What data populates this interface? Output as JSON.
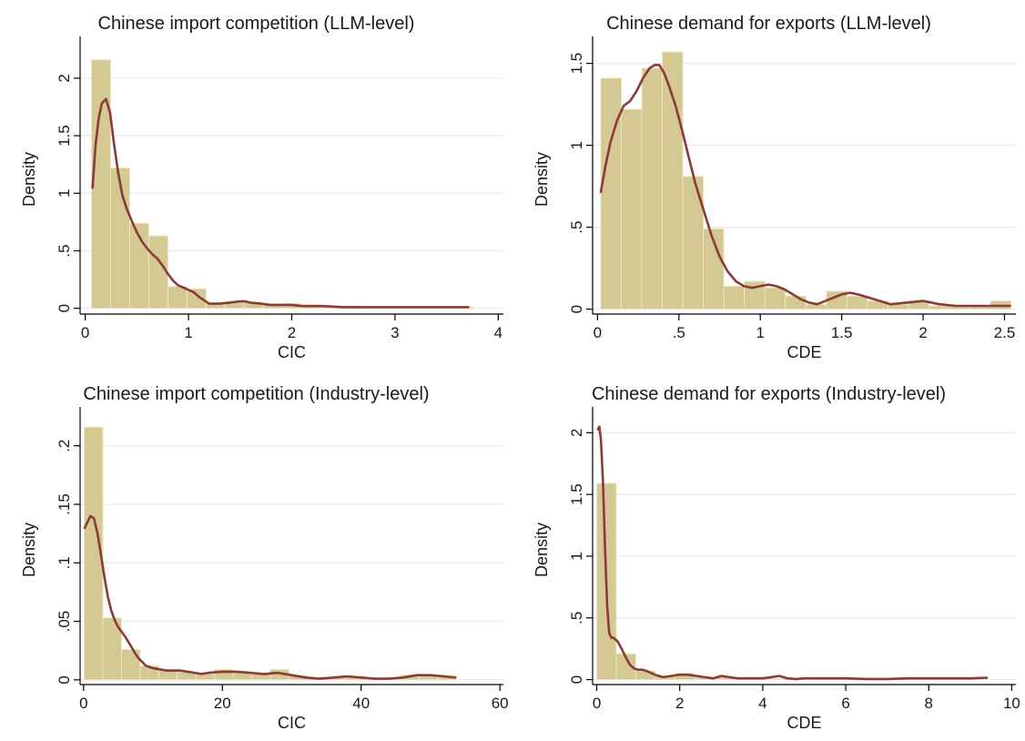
{
  "style": {
    "bar_fill": "#d4c993",
    "bar_stroke": "#ece6c8",
    "kde_color": "#8b3a3a",
    "grid_color": "#e6ecec",
    "axis_color": "#000000"
  },
  "chart_data": [
    {
      "type": "histogram",
      "title": "Chinese import competition (LLM-level)",
      "xlabel": "CIC",
      "ylabel": "Density",
      "xlim": [
        -0.05,
        4.05
      ],
      "ylim": [
        -0.05,
        2.3
      ],
      "xticks": [
        0,
        1,
        2,
        3,
        4
      ],
      "xtick_labels": [
        "0",
        "1",
        "2",
        "3",
        "4"
      ],
      "yticks": [
        0,
        0.5,
        1,
        1.5,
        2
      ],
      "ytick_labels": [
        "0",
        ".5",
        "1",
        "1.5",
        "2"
      ],
      "grid": true,
      "bins": [
        {
          "x0": 0.06,
          "x1": 0.245,
          "density": 2.16
        },
        {
          "x0": 0.245,
          "x1": 0.43,
          "density": 1.22
        },
        {
          "x0": 0.43,
          "x1": 0.615,
          "density": 0.74
        },
        {
          "x0": 0.615,
          "x1": 0.8,
          "density": 0.63
        },
        {
          "x0": 0.8,
          "x1": 0.985,
          "density": 0.19
        },
        {
          "x0": 0.985,
          "x1": 1.17,
          "density": 0.17
        },
        {
          "x0": 1.17,
          "x1": 1.355,
          "density": 0.04
        },
        {
          "x0": 1.355,
          "x1": 1.54,
          "density": 0.05
        },
        {
          "x0": 1.54,
          "x1": 1.725,
          "density": 0.05
        },
        {
          "x0": 1.725,
          "x1": 1.91,
          "density": 0.03
        },
        {
          "x0": 1.91,
          "x1": 2.095,
          "density": 0.04
        },
        {
          "x0": 2.095,
          "x1": 2.28,
          "density": 0.03
        },
        {
          "x0": 2.28,
          "x1": 2.465,
          "density": 0.02
        },
        {
          "x0": 2.465,
          "x1": 2.65,
          "density": 0.02
        },
        {
          "x0": 2.65,
          "x1": 2.835,
          "density": 0.01
        },
        {
          "x0": 2.835,
          "x1": 3.02,
          "density": 0.01
        },
        {
          "x0": 3.02,
          "x1": 3.205,
          "density": 0.01
        },
        {
          "x0": 3.205,
          "x1": 3.39,
          "density": 0.01
        },
        {
          "x0": 3.39,
          "x1": 3.575,
          "density": 0.01
        },
        {
          "x0": 3.575,
          "x1": 3.76,
          "density": 0.01
        }
      ],
      "kde": {
        "x": [
          0.07,
          0.1,
          0.13,
          0.16,
          0.2,
          0.24,
          0.28,
          0.32,
          0.36,
          0.4,
          0.45,
          0.5,
          0.55,
          0.6,
          0.65,
          0.7,
          0.75,
          0.8,
          0.85,
          0.9,
          0.95,
          1.0,
          1.05,
          1.1,
          1.15,
          1.2,
          1.25,
          1.3,
          1.4,
          1.5,
          1.55,
          1.6,
          1.7,
          1.8,
          1.9,
          2.0,
          2.1,
          2.3,
          2.5,
          2.7,
          2.9,
          3.1,
          3.3,
          3.5,
          3.72
        ],
        "y": [
          1.04,
          1.42,
          1.65,
          1.78,
          1.82,
          1.7,
          1.42,
          1.17,
          0.98,
          0.87,
          0.76,
          0.66,
          0.58,
          0.52,
          0.47,
          0.43,
          0.37,
          0.3,
          0.24,
          0.2,
          0.18,
          0.16,
          0.14,
          0.1,
          0.07,
          0.04,
          0.04,
          0.04,
          0.05,
          0.06,
          0.06,
          0.05,
          0.04,
          0.03,
          0.03,
          0.03,
          0.02,
          0.02,
          0.01,
          0.01,
          0.01,
          0.01,
          0.01,
          0.01,
          0.01
        ]
      }
    },
    {
      "type": "histogram",
      "title": "Chinese demand for exports (LLM-level)",
      "xlabel": "CDE",
      "ylabel": "Density",
      "xlim": [
        -0.03,
        2.57
      ],
      "ylim": [
        -0.03,
        1.62
      ],
      "xticks": [
        0,
        0.5,
        1,
        1.5,
        2,
        2.5
      ],
      "xtick_labels": [
        "0",
        ".5",
        "1",
        "1.5",
        "2",
        "2.5"
      ],
      "yticks": [
        0,
        0.5,
        1,
        1.5
      ],
      "ytick_labels": [
        "0",
        ".5",
        "1",
        "1.5"
      ],
      "grid": true,
      "bins": [
        {
          "x0": 0.02,
          "x1": 0.146,
          "density": 1.41
        },
        {
          "x0": 0.146,
          "x1": 0.272,
          "density": 1.22
        },
        {
          "x0": 0.272,
          "x1": 0.398,
          "density": 1.47
        },
        {
          "x0": 0.398,
          "x1": 0.524,
          "density": 1.57
        },
        {
          "x0": 0.524,
          "x1": 0.65,
          "density": 0.81
        },
        {
          "x0": 0.65,
          "x1": 0.776,
          "density": 0.49
        },
        {
          "x0": 0.776,
          "x1": 0.902,
          "density": 0.14
        },
        {
          "x0": 0.902,
          "x1": 1.028,
          "density": 0.17
        },
        {
          "x0": 1.028,
          "x1": 1.154,
          "density": 0.13
        },
        {
          "x0": 1.154,
          "x1": 1.28,
          "density": 0.08
        },
        {
          "x0": 1.28,
          "x1": 1.406,
          "density": 0.03
        },
        {
          "x0": 1.406,
          "x1": 1.532,
          "density": 0.11
        },
        {
          "x0": 1.532,
          "x1": 1.658,
          "density": 0.08
        },
        {
          "x0": 1.658,
          "x1": 1.784,
          "density": 0.05
        },
        {
          "x0": 1.784,
          "x1": 1.91,
          "density": 0.03
        },
        {
          "x0": 1.91,
          "x1": 2.036,
          "density": 0.05
        },
        {
          "x0": 2.036,
          "x1": 2.162,
          "density": 0.02
        },
        {
          "x0": 2.162,
          "x1": 2.288,
          "density": 0.02
        },
        {
          "x0": 2.288,
          "x1": 2.414,
          "density": 0.02
        },
        {
          "x0": 2.414,
          "x1": 2.54,
          "density": 0.05
        }
      ],
      "kde": {
        "x": [
          0.02,
          0.05,
          0.08,
          0.12,
          0.16,
          0.2,
          0.24,
          0.28,
          0.32,
          0.35,
          0.38,
          0.41,
          0.44,
          0.48,
          0.52,
          0.56,
          0.6,
          0.65,
          0.7,
          0.75,
          0.8,
          0.85,
          0.9,
          0.95,
          1.0,
          1.05,
          1.1,
          1.15,
          1.2,
          1.25,
          1.3,
          1.35,
          1.4,
          1.45,
          1.5,
          1.55,
          1.6,
          1.7,
          1.8,
          1.9,
          2.0,
          2.1,
          2.2,
          2.3,
          2.4,
          2.54
        ],
        "y": [
          0.71,
          0.88,
          1.02,
          1.15,
          1.24,
          1.27,
          1.33,
          1.41,
          1.47,
          1.49,
          1.49,
          1.44,
          1.36,
          1.24,
          1.09,
          0.93,
          0.77,
          0.61,
          0.45,
          0.32,
          0.23,
          0.17,
          0.14,
          0.13,
          0.14,
          0.15,
          0.14,
          0.12,
          0.09,
          0.06,
          0.04,
          0.03,
          0.05,
          0.07,
          0.09,
          0.1,
          0.09,
          0.06,
          0.03,
          0.04,
          0.05,
          0.03,
          0.02,
          0.02,
          0.02,
          0.02
        ]
      }
    },
    {
      "type": "histogram",
      "title": "Chinese import competition (Industry-level)",
      "xlabel": "CIC",
      "ylabel": "Density",
      "xlim": [
        -0.5,
        60.5
      ],
      "ylim": [
        -0.004,
        0.227
      ],
      "xticks": [
        0,
        20,
        40,
        60
      ],
      "xtick_labels": [
        "0",
        "20",
        "40",
        "60"
      ],
      "yticks": [
        0,
        0.05,
        0.1,
        0.15,
        0.2
      ],
      "ytick_labels": [
        "0",
        ".05",
        ".1",
        ".15",
        ".2"
      ],
      "grid": true,
      "bins": [
        {
          "x0": 0.1,
          "x1": 2.78,
          "density": 0.216
        },
        {
          "x0": 2.78,
          "x1": 5.46,
          "density": 0.053
        },
        {
          "x0": 5.46,
          "x1": 8.14,
          "density": 0.026
        },
        {
          "x0": 8.14,
          "x1": 10.82,
          "density": 0.012
        },
        {
          "x0": 10.82,
          "x1": 13.5,
          "density": 0.008
        },
        {
          "x0": 13.5,
          "x1": 16.18,
          "density": 0.007
        },
        {
          "x0": 16.18,
          "x1": 18.86,
          "density": 0.005
        },
        {
          "x0": 18.86,
          "x1": 21.54,
          "density": 0.009
        },
        {
          "x0": 21.54,
          "x1": 24.22,
          "density": 0.006
        },
        {
          "x0": 24.22,
          "x1": 26.9,
          "density": 0.005
        },
        {
          "x0": 26.9,
          "x1": 29.58,
          "density": 0.009
        },
        {
          "x0": 29.58,
          "x1": 32.26,
          "density": 0.004
        },
        {
          "x0": 32.26,
          "x1": 34.94,
          "density": 0.002
        },
        {
          "x0": 34.94,
          "x1": 37.62,
          "density": 0.002
        },
        {
          "x0": 37.62,
          "x1": 40.3,
          "density": 0.003
        },
        {
          "x0": 40.3,
          "x1": 42.98,
          "density": 0.001
        },
        {
          "x0": 42.98,
          "x1": 45.66,
          "density": 0.002
        },
        {
          "x0": 45.66,
          "x1": 48.34,
          "density": 0.004
        },
        {
          "x0": 48.34,
          "x1": 51.02,
          "density": 0.004
        },
        {
          "x0": 51.02,
          "x1": 53.7,
          "density": 0.003
        }
      ],
      "kde": {
        "x": [
          0.1,
          0.5,
          1,
          1.5,
          2,
          2.5,
          3,
          3.5,
          4,
          4.5,
          5,
          5.5,
          6,
          6.5,
          7,
          7.5,
          8,
          9,
          10,
          11,
          12,
          13,
          14,
          15,
          16,
          17,
          18,
          20,
          22,
          24,
          26,
          28,
          30,
          32,
          34,
          36,
          38,
          40,
          42,
          44,
          46,
          48,
          50,
          52,
          53.7
        ],
        "y": [
          0.129,
          0.134,
          0.14,
          0.138,
          0.125,
          0.107,
          0.088,
          0.071,
          0.059,
          0.051,
          0.045,
          0.041,
          0.037,
          0.032,
          0.027,
          0.022,
          0.018,
          0.012,
          0.01,
          0.009,
          0.008,
          0.008,
          0.008,
          0.007,
          0.006,
          0.005,
          0.006,
          0.007,
          0.007,
          0.006,
          0.005,
          0.006,
          0.004,
          0.002,
          0.001,
          0.002,
          0.003,
          0.002,
          0.001,
          0.001,
          0.002,
          0.004,
          0.004,
          0.003,
          0.002
        ]
      }
    },
    {
      "type": "histogram",
      "title": "Chinese demand for exports (Industry-level)",
      "xlabel": "CDE",
      "ylabel": "Density",
      "xlim": [
        -0.1,
        10.1
      ],
      "ylim": [
        -0.04,
        2.15
      ],
      "xticks": [
        0,
        2,
        4,
        6,
        8,
        10
      ],
      "xtick_labels": [
        "0",
        "2",
        "4",
        "6",
        "8",
        "10"
      ],
      "yticks": [
        0,
        0.5,
        1,
        1.5,
        2
      ],
      "ytick_labels": [
        "0",
        ".5",
        "1",
        "1.5",
        "2"
      ],
      "grid": true,
      "bins": [
        {
          "x0": 0.0,
          "x1": 0.47,
          "density": 1.59
        },
        {
          "x0": 0.47,
          "x1": 0.94,
          "density": 0.21
        },
        {
          "x0": 0.94,
          "x1": 1.41,
          "density": 0.07
        },
        {
          "x0": 1.41,
          "x1": 1.88,
          "density": 0.03
        },
        {
          "x0": 1.88,
          "x1": 2.35,
          "density": 0.05
        },
        {
          "x0": 2.35,
          "x1": 2.82,
          "density": 0.02
        },
        {
          "x0": 2.82,
          "x1": 3.29,
          "density": 0.02
        },
        {
          "x0": 3.29,
          "x1": 3.76,
          "density": 0.01
        },
        {
          "x0": 3.76,
          "x1": 4.23,
          "density": 0.02
        },
        {
          "x0": 4.23,
          "x1": 4.7,
          "density": 0.01
        },
        {
          "x0": 4.7,
          "x1": 5.17,
          "density": 0.01
        },
        {
          "x0": 5.17,
          "x1": 5.64,
          "density": 0.01
        },
        {
          "x0": 5.64,
          "x1": 6.11,
          "density": 0.01
        },
        {
          "x0": 6.11,
          "x1": 6.58,
          "density": 0.01
        },
        {
          "x0": 6.58,
          "x1": 7.05,
          "density": 0.005
        },
        {
          "x0": 7.05,
          "x1": 7.52,
          "density": 0.005
        },
        {
          "x0": 7.52,
          "x1": 7.99,
          "density": 0.01
        },
        {
          "x0": 7.99,
          "x1": 8.46,
          "density": 0.01
        },
        {
          "x0": 8.46,
          "x1": 8.93,
          "density": 0.01
        },
        {
          "x0": 8.93,
          "x1": 9.4,
          "density": 0.01
        }
      ],
      "kde": {
        "x": [
          0.02,
          0.06,
          0.1,
          0.15,
          0.2,
          0.25,
          0.3,
          0.35,
          0.4,
          0.5,
          0.6,
          0.7,
          0.8,
          0.9,
          1.0,
          1.1,
          1.2,
          1.4,
          1.6,
          1.8,
          2.0,
          2.2,
          2.4,
          2.6,
          2.8,
          3.0,
          3.2,
          3.4,
          3.6,
          3.8,
          4.0,
          4.2,
          4.4,
          4.6,
          4.8,
          5.0,
          5.5,
          6.0,
          6.5,
          7.0,
          7.5,
          8.0,
          8.5,
          9.0,
          9.42
        ],
        "y": [
          2.02,
          2.05,
          1.95,
          1.6,
          1.05,
          0.6,
          0.38,
          0.34,
          0.34,
          0.31,
          0.25,
          0.18,
          0.12,
          0.09,
          0.08,
          0.08,
          0.07,
          0.04,
          0.02,
          0.03,
          0.04,
          0.04,
          0.03,
          0.02,
          0.01,
          0.03,
          0.02,
          0.01,
          0.01,
          0.01,
          0.01,
          0.02,
          0.03,
          0.01,
          0.005,
          0.01,
          0.01,
          0.01,
          0.005,
          0.005,
          0.01,
          0.01,
          0.01,
          0.01,
          0.015
        ]
      }
    }
  ]
}
